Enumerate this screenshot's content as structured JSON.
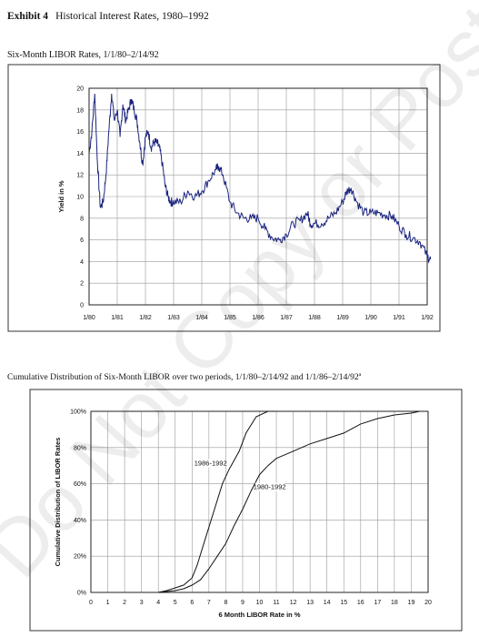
{
  "header": {
    "exhibit_label": "Exhibit 4",
    "title": "Historical Interest Rates, 1980–1992",
    "chart1_subtitle": "Six-Month LIBOR Rates, 1/1/80–2/14/92",
    "chart2_subtitle": "Cumulative Distribution of Six-Month LIBOR over two periods, 1/1/80–2/14/92 and 1/1/86–2/14/92ª"
  },
  "watermark": "Do Not Copy or Post",
  "chart_data": [
    {
      "type": "line",
      "title": "Six-Month LIBOR Rates, 1/1/80–2/14/92",
      "ylabel": "Yield in %",
      "xlabel": "",
      "ylim": [
        0,
        20
      ],
      "yticks": [
        "0",
        "2",
        "4",
        "6",
        "8",
        "10",
        "12",
        "14",
        "16",
        "18",
        "20"
      ],
      "xticks": [
        "1/80",
        "1/81",
        "1/82",
        "1/83",
        "1/84",
        "1/85",
        "1/86",
        "1/87",
        "1/88",
        "1/89",
        "1/90",
        "1/91",
        "1/92"
      ],
      "grid": true,
      "series": [
        {
          "x": [
            1980.0,
            1980.1,
            1980.2,
            1980.3,
            1980.4,
            1980.5,
            1980.6,
            1980.7,
            1980.8,
            1980.9,
            1981.0,
            1981.1,
            1981.2,
            1981.3,
            1981.4,
            1981.5,
            1981.6,
            1981.7,
            1981.8,
            1981.9,
            1982.0,
            1982.1,
            1982.2,
            1982.3,
            1982.4,
            1982.5,
            1982.6,
            1982.7,
            1982.8,
            1982.9,
            1983.0,
            1983.25,
            1983.5,
            1983.75,
            1984.0,
            1984.25,
            1984.5,
            1984.6,
            1984.75,
            1985.0,
            1985.25,
            1985.5,
            1985.75,
            1986.0,
            1986.25,
            1986.5,
            1986.75,
            1987.0,
            1987.25,
            1987.5,
            1987.75,
            1987.85,
            1988.0,
            1988.25,
            1988.5,
            1988.75,
            1989.0,
            1989.15,
            1989.3,
            1989.5,
            1989.75,
            1990.0,
            1990.25,
            1990.5,
            1990.75,
            1991.0,
            1991.25,
            1991.5,
            1991.75,
            1992.0,
            1992.12
          ],
          "y": [
            14.0,
            16.0,
            19.5,
            13.0,
            9.0,
            9.5,
            12.0,
            16.0,
            19.5,
            17.0,
            18.0,
            15.5,
            18.5,
            17.0,
            18.0,
            19.0,
            18.0,
            17.0,
            15.0,
            13.0,
            15.5,
            16.0,
            14.5,
            15.0,
            15.0,
            14.5,
            13.0,
            11.0,
            10.0,
            9.5,
            9.5,
            9.5,
            10.5,
            10.0,
            10.5,
            11.5,
            12.5,
            12.8,
            12.0,
            9.5,
            8.5,
            8.0,
            8.0,
            8.0,
            7.0,
            6.2,
            6.0,
            6.5,
            7.5,
            7.8,
            8.5,
            7.5,
            7.5,
            7.5,
            8.0,
            8.5,
            9.5,
            10.5,
            10.8,
            9.5,
            8.5,
            8.5,
            8.5,
            8.3,
            8.2,
            7.3,
            6.5,
            6.2,
            5.8,
            4.5,
            4.2
          ]
        }
      ]
    },
    {
      "type": "line",
      "title": "Cumulative Distribution of Six-Month LIBOR over two periods, 1/1/80–2/14/92 and 1/1/86–2/14/92ª",
      "ylabel": "Cumulative Distribution of LIBOR Rates",
      "xlabel": "6 Month LIBOR Rate in %",
      "ylim": [
        0,
        100
      ],
      "xlim": [
        0,
        20
      ],
      "yticks": [
        "0%",
        "20%",
        "40%",
        "60%",
        "80%",
        "100%"
      ],
      "xticks": [
        "0",
        "1",
        "2",
        "3",
        "4",
        "5",
        "6",
        "7",
        "8",
        "9",
        "10",
        "11",
        "12",
        "13",
        "14",
        "15",
        "16",
        "17",
        "18",
        "19",
        "20"
      ],
      "grid": true,
      "series": [
        {
          "name": "1986-1992",
          "x": [
            4.0,
            4.5,
            5.5,
            6.0,
            6.3,
            6.8,
            7.3,
            7.8,
            8.2,
            8.8,
            9.2,
            9.8,
            10.5,
            11.0
          ],
          "y": [
            0,
            1,
            4,
            8,
            15,
            30,
            45,
            60,
            68,
            78,
            88,
            97,
            100,
            100
          ]
        },
        {
          "name": "1980-1992",
          "x": [
            4.0,
            5.0,
            5.5,
            6.0,
            6.5,
            7.0,
            7.5,
            8.0,
            8.5,
            9.0,
            9.5,
            10.0,
            10.5,
            11.0,
            11.5,
            12.0,
            13.0,
            14.0,
            15.0,
            16.0,
            17.0,
            18.0,
            19.0,
            19.5
          ],
          "y": [
            0,
            1,
            2,
            4,
            7,
            13,
            20,
            27,
            37,
            46,
            56,
            65,
            70,
            74,
            76,
            78,
            82,
            85,
            88,
            93,
            96,
            98,
            99,
            100
          ]
        }
      ]
    }
  ]
}
